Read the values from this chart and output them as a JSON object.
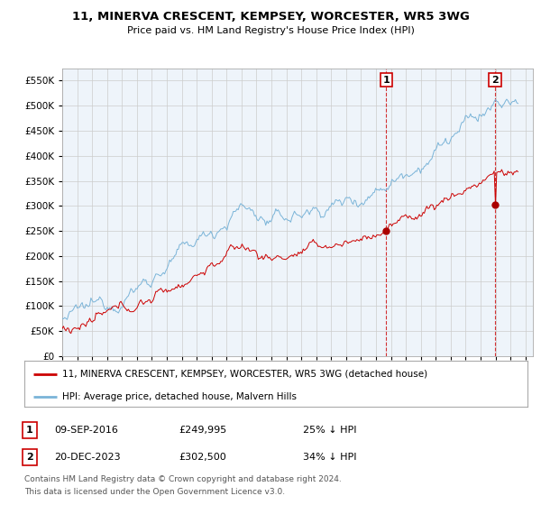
{
  "title": "11, MINERVA CRESCENT, KEMPSEY, WORCESTER, WR5 3WG",
  "subtitle": "Price paid vs. HM Land Registry's House Price Index (HPI)",
  "legend_line1": "11, MINERVA CRESCENT, KEMPSEY, WORCESTER, WR5 3WG (detached house)",
  "legend_line2": "HPI: Average price, detached house, Malvern Hills",
  "annotation1_label": "1",
  "annotation1_date": "09-SEP-2016",
  "annotation1_price": "£249,995",
  "annotation1_hpi": "25% ↓ HPI",
  "annotation1_year": 2016.69,
  "annotation1_value": 249995,
  "annotation2_label": "2",
  "annotation2_date": "20-DEC-2023",
  "annotation2_price": "£302,500",
  "annotation2_hpi": "34% ↓ HPI",
  "annotation2_year": 2023.97,
  "annotation2_value": 302500,
  "hpi_color": "#7ab4d8",
  "price_color": "#cc0000",
  "marker_color": "#aa0000",
  "vline_color": "#cc0000",
  "grid_color": "#cccccc",
  "bg_color": "#ffffff",
  "plot_bg_color": "#eef4fa",
  "ylim": [
    0,
    575000
  ],
  "yticks": [
    0,
    50000,
    100000,
    150000,
    200000,
    250000,
    300000,
    350000,
    400000,
    450000,
    500000,
    550000
  ],
  "footer_line1": "Contains HM Land Registry data © Crown copyright and database right 2024.",
  "footer_line2": "This data is licensed under the Open Government Licence v3.0."
}
